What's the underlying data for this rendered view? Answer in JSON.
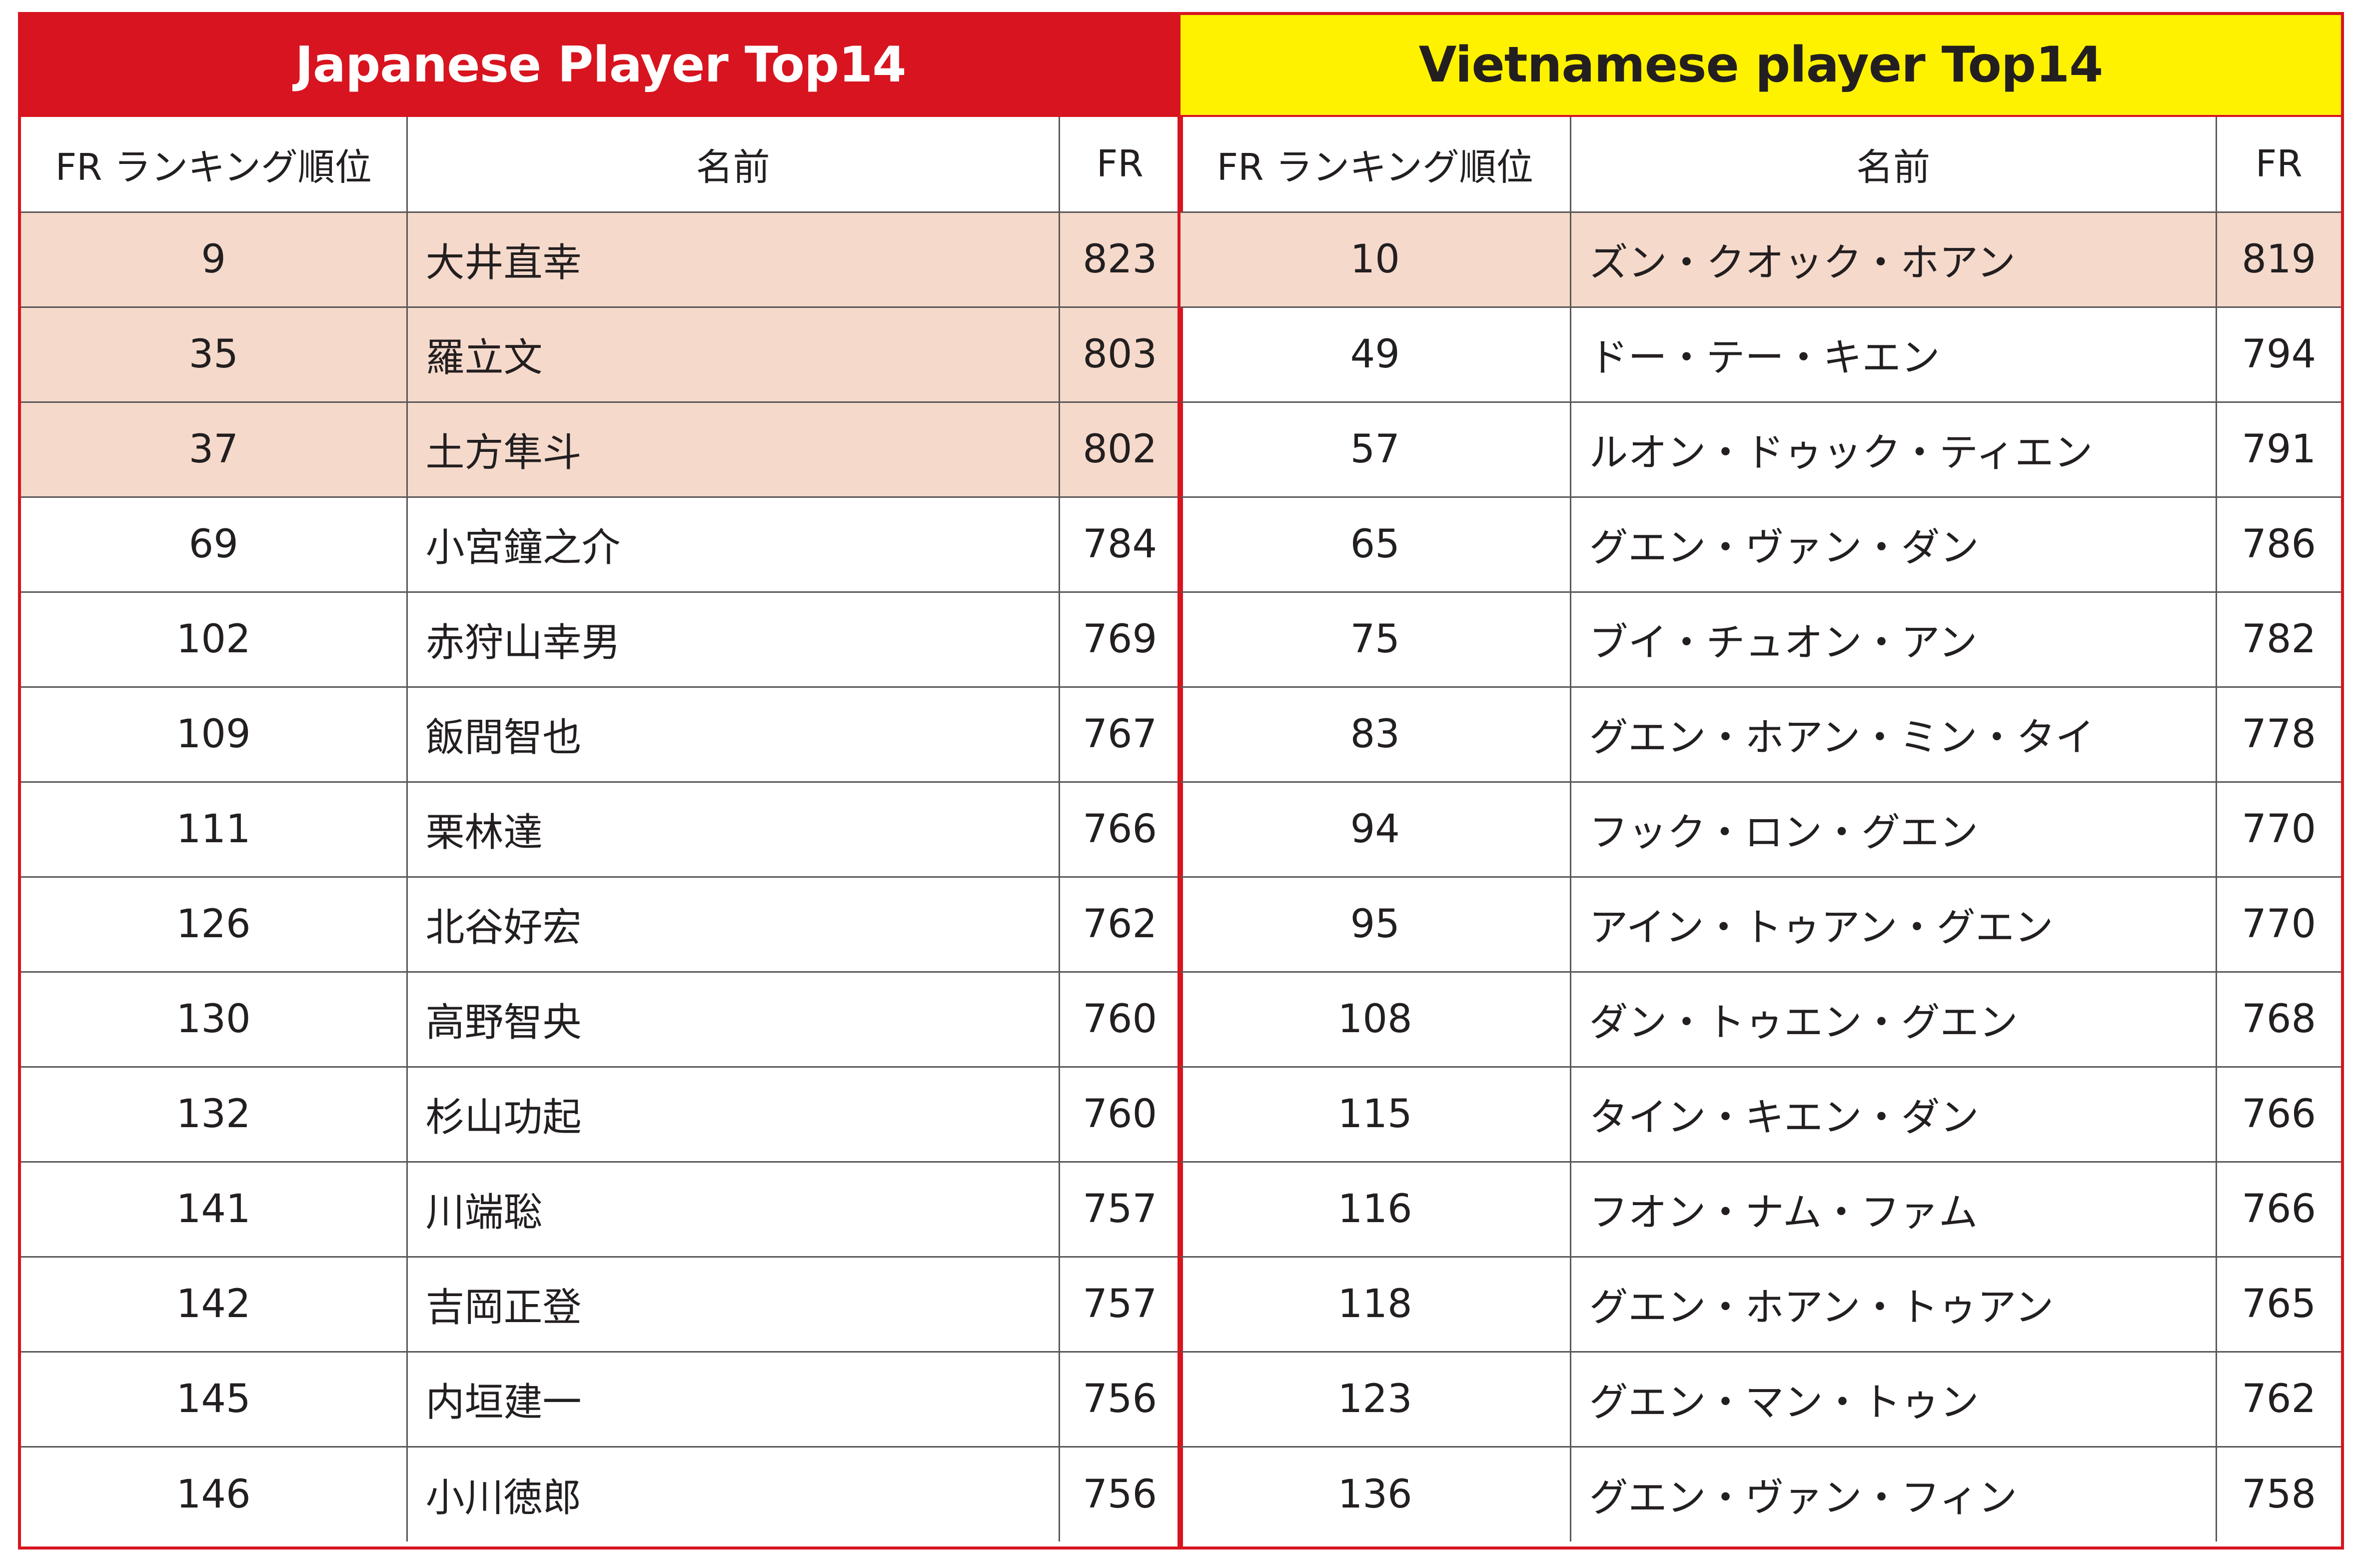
{
  "colors": {
    "accent_red": "#d7141f",
    "accent_yellow": "#fff200",
    "highlight_row": "#f5d9cb",
    "grid": "#595757"
  },
  "japan": {
    "title": "Japanese Player Top14",
    "headers": [
      "FR ランキング順位",
      "名前",
      "FR"
    ],
    "rows": [
      {
        "rank": "9",
        "name": "大井直幸",
        "fr": "823",
        "highlight": true
      },
      {
        "rank": "35",
        "name": "羅立文",
        "fr": "803",
        "highlight": true
      },
      {
        "rank": "37",
        "name": "土方隼斗",
        "fr": "802",
        "highlight": true
      },
      {
        "rank": "69",
        "name": "小宮鐘之介",
        "fr": "784",
        "highlight": false
      },
      {
        "rank": "102",
        "name": "赤狩山幸男",
        "fr": "769",
        "highlight": false
      },
      {
        "rank": "109",
        "name": "飯間智也",
        "fr": "767",
        "highlight": false
      },
      {
        "rank": "111",
        "name": "栗林達",
        "fr": "766",
        "highlight": false
      },
      {
        "rank": "126",
        "name": "北谷好宏",
        "fr": "762",
        "highlight": false
      },
      {
        "rank": "130",
        "name": "高野智央",
        "fr": "760",
        "highlight": false
      },
      {
        "rank": "132",
        "name": "杉山功起",
        "fr": "760",
        "highlight": false
      },
      {
        "rank": "141",
        "name": "川端聡",
        "fr": "757",
        "highlight": false
      },
      {
        "rank": "142",
        "name": "吉岡正登",
        "fr": "757",
        "highlight": false
      },
      {
        "rank": "145",
        "name": "内垣建一",
        "fr": "756",
        "highlight": false
      },
      {
        "rank": "146",
        "name": "小川徳郎",
        "fr": "756",
        "highlight": false
      }
    ]
  },
  "vietnam": {
    "title": "Vietnamese player Top14",
    "headers": [
      "FR ランキング順位",
      "名前",
      "FR"
    ],
    "rows": [
      {
        "rank": "10",
        "name": "ズン・クオック・ホアン",
        "fr": "819",
        "highlight": true
      },
      {
        "rank": "49",
        "name": "ドー・テー・キエン",
        "fr": "794",
        "highlight": false
      },
      {
        "rank": "57",
        "name": "ルオン・ドゥック・ティエン",
        "fr": "791",
        "highlight": false
      },
      {
        "rank": "65",
        "name": "グエン・ヴァン・ダン",
        "fr": "786",
        "highlight": false
      },
      {
        "rank": "75",
        "name": "ブイ・チュオン・アン",
        "fr": "782",
        "highlight": false
      },
      {
        "rank": "83",
        "name": "グエン・ホアン・ミン・タイ",
        "fr": "778",
        "highlight": false
      },
      {
        "rank": "94",
        "name": "フック・ロン・グエン",
        "fr": "770",
        "highlight": false
      },
      {
        "rank": "95",
        "name": "アイン・トゥアン・グエン",
        "fr": "770",
        "highlight": false
      },
      {
        "rank": "108",
        "name": "ダン・トゥエン・グエン",
        "fr": "768",
        "highlight": false
      },
      {
        "rank": "115",
        "name": "タイン・キエン・ダン",
        "fr": "766",
        "highlight": false
      },
      {
        "rank": "116",
        "name": "フオン・ナム・ファム",
        "fr": "766",
        "highlight": false
      },
      {
        "rank": "118",
        "name": "グエン・ホアン・トゥアン",
        "fr": "765",
        "highlight": false
      },
      {
        "rank": "123",
        "name": "グエン・マン・トゥン",
        "fr": "762",
        "highlight": false
      },
      {
        "rank": "136",
        "name": "グエン・ヴァン・フィン",
        "fr": "758",
        "highlight": false
      }
    ]
  }
}
